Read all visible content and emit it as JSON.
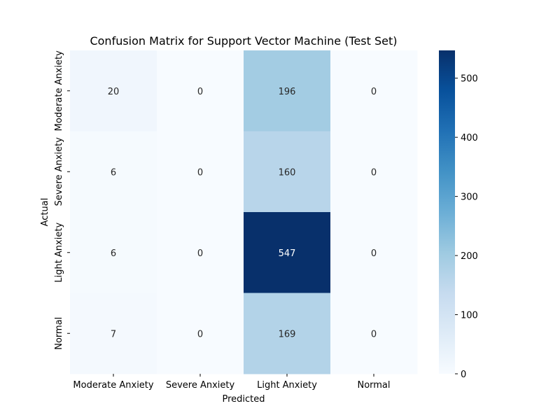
{
  "chart_data": {
    "type": "heatmap",
    "title": "Confusion Matrix for Support Vector Machine (Test Set)",
    "xlabel": "Predicted",
    "ylabel": "Actual",
    "x_categories": [
      "Moderate Anxiety",
      "Severe Anxiety",
      "Light Anxiety",
      "Normal"
    ],
    "y_categories": [
      "Moderate Anxiety",
      "Severe Anxiety",
      "Light Anxiety",
      "Normal"
    ],
    "values": [
      [
        20,
        0,
        196,
        0
      ],
      [
        6,
        0,
        160,
        0
      ],
      [
        6,
        0,
        547,
        0
      ],
      [
        7,
        0,
        169,
        0
      ]
    ],
    "colormap": "Blues",
    "colorbar": {
      "min": 0,
      "max": 547,
      "ticks": [
        0,
        100,
        200,
        300,
        400,
        500
      ]
    },
    "annotations": true,
    "grid": false
  }
}
